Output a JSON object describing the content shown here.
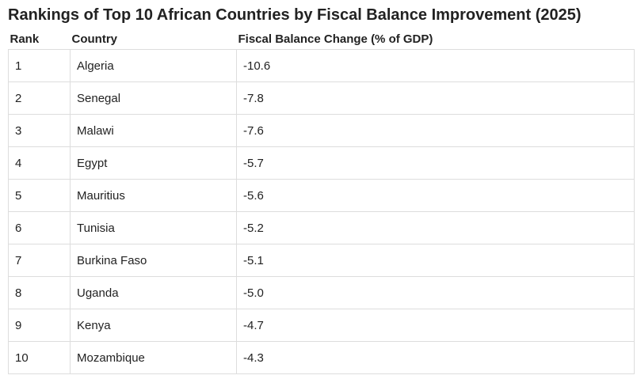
{
  "title": "Rankings of Top 10 African Countries by Fiscal Balance Improvement (2025)",
  "table": {
    "headers": [
      "Rank",
      "Country",
      "Fiscal Balance Change (% of GDP)"
    ],
    "rows": [
      {
        "rank": "1",
        "country": "Algeria",
        "change": "-10.6"
      },
      {
        "rank": "2",
        "country": "Senegal",
        "change": "-7.8"
      },
      {
        "rank": "3",
        "country": "Malawi",
        "change": "-7.6"
      },
      {
        "rank": "4",
        "country": "Egypt",
        "change": "-5.7"
      },
      {
        "rank": "5",
        "country": "Mauritius",
        "change": "-5.6"
      },
      {
        "rank": "6",
        "country": "Tunisia",
        "change": "-5.2"
      },
      {
        "rank": "7",
        "country": "Burkina Faso",
        "change": "-5.1"
      },
      {
        "rank": "8",
        "country": "Uganda",
        "change": "-5.0"
      },
      {
        "rank": "9",
        "country": "Kenya",
        "change": "-4.7"
      },
      {
        "rank": "10",
        "country": "Mozambique",
        "change": "-4.3"
      }
    ]
  }
}
